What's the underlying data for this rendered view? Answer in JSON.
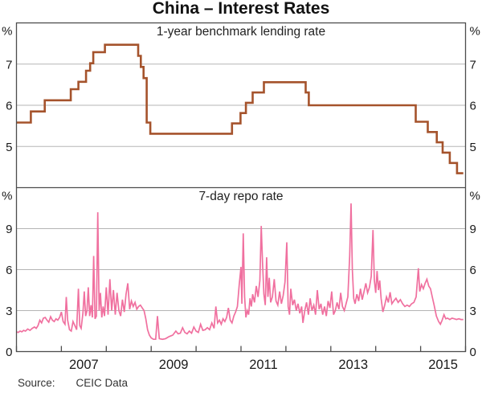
{
  "title": "China – Interest Rates",
  "source": {
    "label": "Source:",
    "value": "CEIC Data"
  },
  "colors": {
    "lending_line": "#a5532c",
    "repo_line": "#f0709f",
    "grid": "#b5b5b5",
    "axis": "#4d4d4d",
    "text": "#1a1a1a"
  },
  "x_axis": {
    "range": [
      2006,
      2016
    ],
    "tick_years": [
      2006,
      2007,
      2008,
      2009,
      2010,
      2011,
      2012,
      2013,
      2014,
      2015,
      2016
    ],
    "year_labels": [
      {
        "label": "2007",
        "t": 2007.5
      },
      {
        "label": "2009",
        "t": 2009.5
      },
      {
        "label": "2011",
        "t": 2011.5
      },
      {
        "label": "2013",
        "t": 2013.5
      },
      {
        "label": "2015",
        "t": 2015.5
      }
    ]
  },
  "chart_data": [
    {
      "type": "line",
      "style": "step",
      "panel": "top",
      "title": "1-year benchmark lending rate",
      "unit": "%",
      "color_key": "lending_line",
      "ylim": [
        4,
        8
      ],
      "yticks": [
        5,
        6,
        7
      ],
      "t_end": 2015.95,
      "points": [
        [
          2006.0,
          5.58
        ],
        [
          2006.32,
          5.85
        ],
        [
          2006.63,
          6.12
        ],
        [
          2007.21,
          6.39
        ],
        [
          2007.38,
          6.57
        ],
        [
          2007.55,
          6.84
        ],
        [
          2007.64,
          7.02
        ],
        [
          2007.71,
          7.29
        ],
        [
          2007.97,
          7.47
        ],
        [
          2008.71,
          7.2
        ],
        [
          2008.77,
          6.93
        ],
        [
          2008.83,
          6.66
        ],
        [
          2008.9,
          5.58
        ],
        [
          2008.98,
          5.31
        ],
        [
          2010.8,
          5.56
        ],
        [
          2010.99,
          5.81
        ],
        [
          2011.11,
          6.06
        ],
        [
          2011.26,
          6.31
        ],
        [
          2011.51,
          6.56
        ],
        [
          2012.44,
          6.31
        ],
        [
          2012.51,
          6.0
        ],
        [
          2014.89,
          5.6
        ],
        [
          2015.16,
          5.35
        ],
        [
          2015.36,
          5.1
        ],
        [
          2015.49,
          4.85
        ],
        [
          2015.65,
          4.6
        ],
        [
          2015.81,
          4.35
        ]
      ]
    },
    {
      "type": "line",
      "style": "linear",
      "panel": "bottom",
      "title": "7-day repo rate",
      "unit": "%",
      "color_key": "repo_line",
      "ylim": [
        0,
        12
      ],
      "yticks": [
        0,
        3,
        6,
        9
      ],
      "points": [
        [
          2006.0,
          1.45
        ],
        [
          2006.04,
          1.4
        ],
        [
          2006.08,
          1.5
        ],
        [
          2006.12,
          1.45
        ],
        [
          2006.16,
          1.55
        ],
        [
          2006.2,
          1.5
        ],
        [
          2006.25,
          1.65
        ],
        [
          2006.3,
          1.55
        ],
        [
          2006.35,
          1.7
        ],
        [
          2006.4,
          1.8
        ],
        [
          2006.44,
          1.7
        ],
        [
          2006.48,
          1.9
        ],
        [
          2006.52,
          2.3
        ],
        [
          2006.56,
          2.1
        ],
        [
          2006.6,
          2.45
        ],
        [
          2006.64,
          2.5
        ],
        [
          2006.68,
          2.3
        ],
        [
          2006.72,
          2.15
        ],
        [
          2006.76,
          2.55
        ],
        [
          2006.8,
          2.3
        ],
        [
          2006.84,
          2.2
        ],
        [
          2006.88,
          2.4
        ],
        [
          2006.92,
          2.3
        ],
        [
          2006.96,
          2.5
        ],
        [
          2007.0,
          2.9
        ],
        [
          2007.04,
          2.2
        ],
        [
          2007.08,
          2.0
        ],
        [
          2007.11,
          4.0
        ],
        [
          2007.14,
          2.3
        ],
        [
          2007.18,
          1.6
        ],
        [
          2007.22,
          1.5
        ],
        [
          2007.26,
          2.2
        ],
        [
          2007.3,
          1.9
        ],
        [
          2007.34,
          1.6
        ],
        [
          2007.38,
          4.6
        ],
        [
          2007.41,
          1.9
        ],
        [
          2007.44,
          1.7
        ],
        [
          2007.48,
          2.8
        ],
        [
          2007.51,
          4.4
        ],
        [
          2007.54,
          2.6
        ],
        [
          2007.57,
          3.0
        ],
        [
          2007.6,
          4.7
        ],
        [
          2007.63,
          2.6
        ],
        [
          2007.66,
          3.4
        ],
        [
          2007.69,
          2.5
        ],
        [
          2007.72,
          7.0
        ],
        [
          2007.75,
          2.4
        ],
        [
          2007.78,
          2.6
        ],
        [
          2007.81,
          10.2
        ],
        [
          2007.84,
          3.0
        ],
        [
          2007.87,
          4.3
        ],
        [
          2007.9,
          2.5
        ],
        [
          2007.93,
          3.3
        ],
        [
          2007.96,
          2.6
        ],
        [
          2008.0,
          4.7
        ],
        [
          2008.04,
          2.7
        ],
        [
          2008.08,
          5.3
        ],
        [
          2008.12,
          3.0
        ],
        [
          2008.16,
          4.5
        ],
        [
          2008.2,
          2.7
        ],
        [
          2008.24,
          4.3
        ],
        [
          2008.28,
          3.0
        ],
        [
          2008.32,
          2.6
        ],
        [
          2008.36,
          3.8
        ],
        [
          2008.4,
          2.9
        ],
        [
          2008.44,
          4.2
        ],
        [
          2008.48,
          5.0
        ],
        [
          2008.52,
          3.1
        ],
        [
          2008.56,
          3.7
        ],
        [
          2008.6,
          3.3
        ],
        [
          2008.64,
          3.6
        ],
        [
          2008.68,
          3.1
        ],
        [
          2008.72,
          3.3
        ],
        [
          2008.76,
          3.4
        ],
        [
          2008.8,
          3.2
        ],
        [
          2008.84,
          3.0
        ],
        [
          2008.88,
          2.4
        ],
        [
          2008.92,
          1.6
        ],
        [
          2008.96,
          1.2
        ],
        [
          2009.0,
          1.0
        ],
        [
          2009.05,
          0.9
        ],
        [
          2009.1,
          0.9
        ],
        [
          2009.14,
          2.6
        ],
        [
          2009.18,
          0.95
        ],
        [
          2009.25,
          0.9
        ],
        [
          2009.32,
          0.95
        ],
        [
          2009.4,
          1.1
        ],
        [
          2009.48,
          1.2
        ],
        [
          2009.55,
          1.5
        ],
        [
          2009.6,
          1.3
        ],
        [
          2009.65,
          1.35
        ],
        [
          2009.7,
          1.75
        ],
        [
          2009.75,
          1.4
        ],
        [
          2009.8,
          1.3
        ],
        [
          2009.85,
          1.5
        ],
        [
          2009.9,
          1.35
        ],
        [
          2009.95,
          1.8
        ],
        [
          2010.0,
          1.5
        ],
        [
          2010.05,
          1.4
        ],
        [
          2010.1,
          2.0
        ],
        [
          2010.15,
          1.55
        ],
        [
          2010.2,
          1.6
        ],
        [
          2010.25,
          1.75
        ],
        [
          2010.3,
          1.6
        ],
        [
          2010.35,
          2.1
        ],
        [
          2010.4,
          1.7
        ],
        [
          2010.44,
          3.3
        ],
        [
          2010.48,
          2.1
        ],
        [
          2010.52,
          2.3
        ],
        [
          2010.56,
          2.0
        ],
        [
          2010.6,
          2.4
        ],
        [
          2010.64,
          2.2
        ],
        [
          2010.68,
          2.5
        ],
        [
          2010.72,
          3.2
        ],
        [
          2010.76,
          2.3
        ],
        [
          2010.8,
          2.1
        ],
        [
          2010.84,
          2.6
        ],
        [
          2010.88,
          2.9
        ],
        [
          2010.92,
          3.3
        ],
        [
          2010.96,
          4.9
        ],
        [
          2011.0,
          6.2
        ],
        [
          2011.02,
          3.5
        ],
        [
          2011.05,
          8.65
        ],
        [
          2011.08,
          4.0
        ],
        [
          2011.11,
          2.5
        ],
        [
          2011.14,
          3.0
        ],
        [
          2011.17,
          2.7
        ],
        [
          2011.2,
          3.9
        ],
        [
          2011.23,
          3.3
        ],
        [
          2011.26,
          4.2
        ],
        [
          2011.3,
          3.6
        ],
        [
          2011.34,
          4.8
        ],
        [
          2011.38,
          4.0
        ],
        [
          2011.42,
          5.2
        ],
        [
          2011.45,
          9.2
        ],
        [
          2011.48,
          6.5
        ],
        [
          2011.51,
          4.2
        ],
        [
          2011.54,
          3.4
        ],
        [
          2011.57,
          6.9
        ],
        [
          2011.6,
          4.0
        ],
        [
          2011.63,
          5.4
        ],
        [
          2011.66,
          3.6
        ],
        [
          2011.7,
          4.0
        ],
        [
          2011.74,
          5.3
        ],
        [
          2011.78,
          3.7
        ],
        [
          2011.82,
          3.4
        ],
        [
          2011.86,
          4.4
        ],
        [
          2011.9,
          3.5
        ],
        [
          2011.94,
          4.1
        ],
        [
          2011.98,
          5.1
        ],
        [
          2012.02,
          8.0
        ],
        [
          2012.05,
          3.3
        ],
        [
          2012.08,
          2.7
        ],
        [
          2012.11,
          4.6
        ],
        [
          2012.15,
          3.4
        ],
        [
          2012.19,
          3.8
        ],
        [
          2012.23,
          3.0
        ],
        [
          2012.27,
          3.5
        ],
        [
          2012.31,
          2.8
        ],
        [
          2012.35,
          3.3
        ],
        [
          2012.38,
          2.1
        ],
        [
          2012.42,
          3.0
        ],
        [
          2012.46,
          3.6
        ],
        [
          2012.5,
          2.7
        ],
        [
          2012.54,
          3.9
        ],
        [
          2012.58,
          3.0
        ],
        [
          2012.62,
          3.4
        ],
        [
          2012.66,
          2.7
        ],
        [
          2012.7,
          4.5
        ],
        [
          2012.74,
          3.1
        ],
        [
          2012.78,
          3.5
        ],
        [
          2012.82,
          2.7
        ],
        [
          2012.86,
          3.3
        ],
        [
          2012.9,
          2.6
        ],
        [
          2012.94,
          3.7
        ],
        [
          2012.98,
          3.2
        ],
        [
          2013.02,
          4.4
        ],
        [
          2013.06,
          2.7
        ],
        [
          2013.1,
          3.0
        ],
        [
          2013.14,
          3.6
        ],
        [
          2013.18,
          3.1
        ],
        [
          2013.22,
          4.3
        ],
        [
          2013.26,
          3.3
        ],
        [
          2013.3,
          3.0
        ],
        [
          2013.34,
          3.5
        ],
        [
          2013.38,
          4.0
        ],
        [
          2013.42,
          7.0
        ],
        [
          2013.45,
          10.85
        ],
        [
          2013.48,
          6.0
        ],
        [
          2013.51,
          3.9
        ],
        [
          2013.54,
          3.5
        ],
        [
          2013.58,
          4.2
        ],
        [
          2013.62,
          3.7
        ],
        [
          2013.66,
          4.6
        ],
        [
          2013.7,
          3.8
        ],
        [
          2013.74,
          4.4
        ],
        [
          2013.78,
          5.0
        ],
        [
          2013.82,
          4.3
        ],
        [
          2013.86,
          4.7
        ],
        [
          2013.9,
          5.5
        ],
        [
          2013.94,
          8.9
        ],
        [
          2013.97,
          5.2
        ],
        [
          2014.0,
          4.3
        ],
        [
          2014.03,
          5.9
        ],
        [
          2014.06,
          4.5
        ],
        [
          2014.09,
          5.2
        ],
        [
          2014.12,
          3.9
        ],
        [
          2014.16,
          2.9
        ],
        [
          2014.2,
          3.4
        ],
        [
          2014.24,
          4.0
        ],
        [
          2014.28,
          3.6
        ],
        [
          2014.32,
          4.35
        ],
        [
          2014.36,
          3.5
        ],
        [
          2014.4,
          3.7
        ],
        [
          2014.45,
          3.9
        ],
        [
          2014.5,
          3.6
        ],
        [
          2014.55,
          3.8
        ],
        [
          2014.6,
          3.5
        ],
        [
          2014.65,
          3.3
        ],
        [
          2014.7,
          3.4
        ],
        [
          2014.75,
          3.3
        ],
        [
          2014.8,
          3.5
        ],
        [
          2014.85,
          3.6
        ],
        [
          2014.9,
          4.0
        ],
        [
          2014.95,
          6.1
        ],
        [
          2014.98,
          4.4
        ],
        [
          2015.02,
          4.9
        ],
        [
          2015.06,
          4.6
        ],
        [
          2015.1,
          5.0
        ],
        [
          2015.14,
          5.3
        ],
        [
          2015.18,
          4.8
        ],
        [
          2015.22,
          4.6
        ],
        [
          2015.26,
          4.0
        ],
        [
          2015.3,
          3.4
        ],
        [
          2015.35,
          2.6
        ],
        [
          2015.4,
          2.2
        ],
        [
          2015.44,
          2.0
        ],
        [
          2015.48,
          2.3
        ],
        [
          2015.52,
          2.7
        ],
        [
          2015.56,
          2.4
        ],
        [
          2015.6,
          2.45
        ],
        [
          2015.65,
          2.35
        ],
        [
          2015.7,
          2.45
        ],
        [
          2015.75,
          2.4
        ],
        [
          2015.8,
          2.35
        ],
        [
          2015.85,
          2.4
        ],
        [
          2015.9,
          2.35
        ],
        [
          2015.95,
          2.35
        ]
      ]
    }
  ]
}
